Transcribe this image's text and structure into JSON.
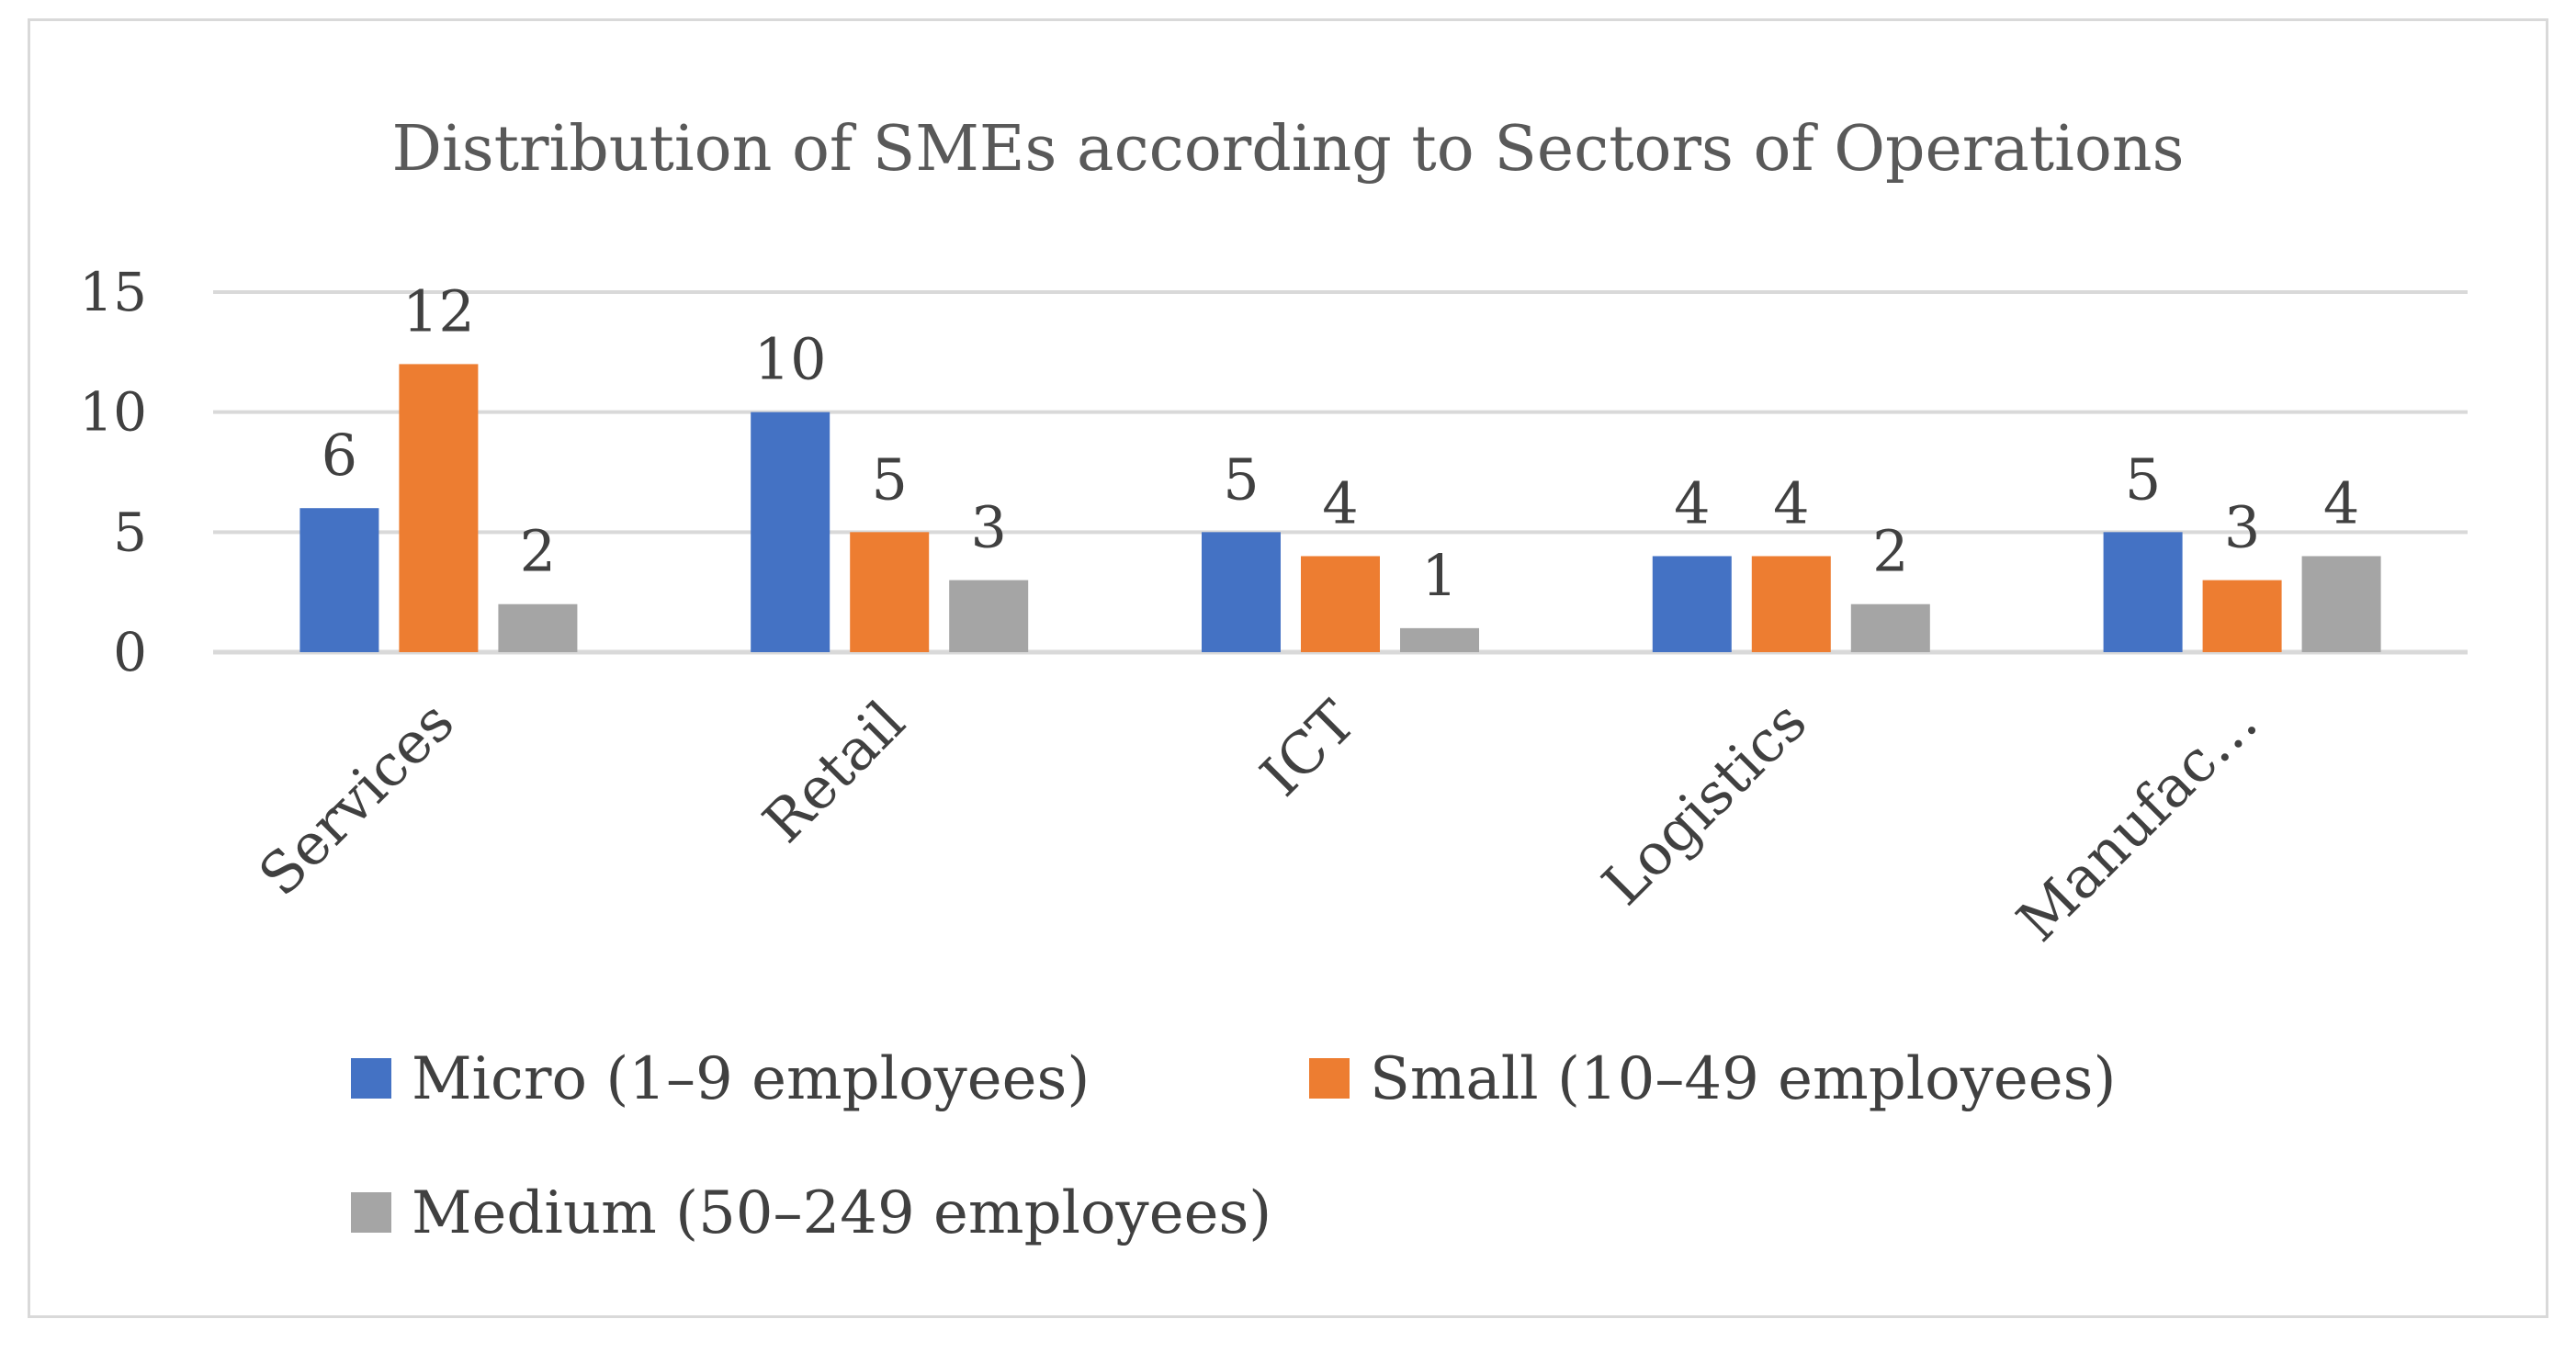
{
  "chart_data": {
    "type": "bar",
    "title": "Distribution of SMEs according to Sectors of Operations",
    "categories": [
      "Services",
      "Retail",
      "ICT",
      "Logistics",
      "Manufac…"
    ],
    "series": [
      {
        "name": "Micro (1–9 employees)",
        "color": "#4472c4",
        "values": [
          6,
          10,
          5,
          4,
          5
        ]
      },
      {
        "name": "Small (10–49 employees)",
        "color": "#ed7d31",
        "values": [
          12,
          5,
          4,
          4,
          3
        ]
      },
      {
        "name": "Medium (50–249 employees)",
        "color": "#a5a5a5",
        "values": [
          2,
          3,
          1,
          2,
          4
        ]
      }
    ],
    "yticks": [
      "0",
      "5",
      "10",
      "15"
    ],
    "ylim": [
      0,
      15
    ],
    "xlabel": "",
    "ylabel": "",
    "grid": true,
    "legend_position": "bottom",
    "data_labels": true
  }
}
